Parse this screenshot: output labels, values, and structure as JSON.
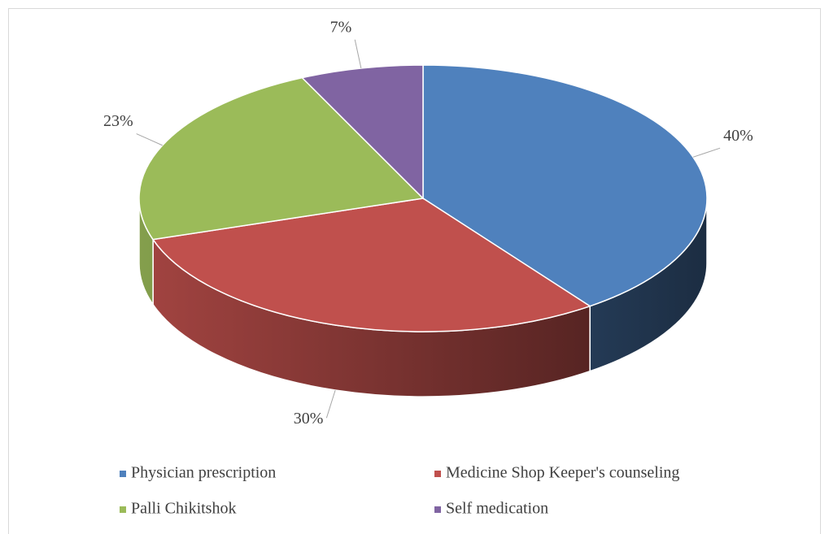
{
  "chart_data": {
    "type": "pie",
    "categories": [
      "Physician prescription",
      "Medicine Shop Keeper's counseling",
      "Palli Chikitshok",
      "Self medication"
    ],
    "values": [
      40,
      30,
      23,
      7
    ],
    "value_labels": [
      "40%",
      "30%",
      "23%",
      "7%"
    ],
    "colors": [
      "#4f81bd",
      "#c0504d",
      "#9bbb59",
      "#8064a2"
    ],
    "legend": "bottom"
  }
}
